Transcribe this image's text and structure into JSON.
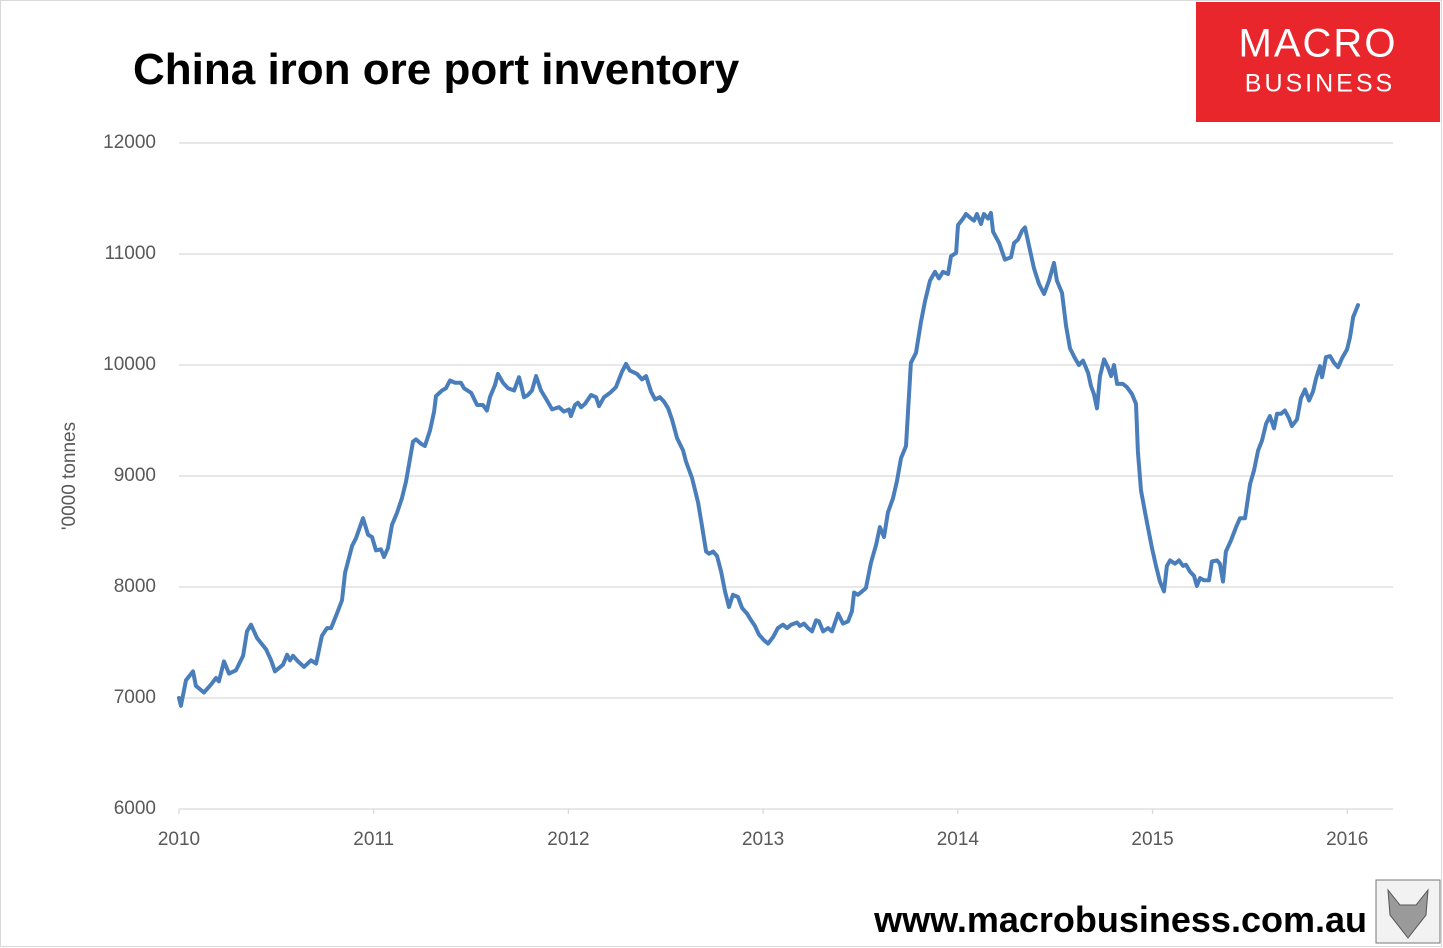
{
  "chart_data": {
    "type": "line",
    "title": "China iron ore port inventory",
    "y_label": "'0000 tonnes",
    "color": "#4a7ebb",
    "grid": true,
    "xlim": [
      2010,
      2016.235
    ],
    "xticks": [
      2010,
      2011,
      2012,
      2013,
      2014,
      2015,
      2016
    ],
    "ylim": [
      6000,
      12000
    ],
    "yticks": [
      6000,
      7000,
      8000,
      9000,
      10000,
      11000,
      12000
    ],
    "x": [
      2010.0,
      2010.01,
      2010.036,
      2010.072,
      2010.087,
      2010.128,
      2010.164,
      2010.19,
      2010.205,
      2010.231,
      2010.257,
      2010.293,
      2010.329,
      2010.349,
      2010.37,
      2010.401,
      2010.447,
      2010.473,
      2010.493,
      2010.534,
      2010.555,
      2010.57,
      2010.586,
      2010.611,
      2010.642,
      2010.678,
      2010.704,
      2010.734,
      2010.76,
      2010.781,
      2010.811,
      2010.837,
      2010.853,
      2010.889,
      2010.909,
      2010.945,
      2010.971,
      2010.991,
      2011.012,
      2011.037,
      2011.053,
      2011.073,
      2011.094,
      2011.12,
      2011.145,
      2011.166,
      2011.202,
      2011.217,
      2011.243,
      2011.263,
      2011.289,
      2011.31,
      2011.32,
      2011.351,
      2011.371,
      2011.392,
      2011.418,
      2011.448,
      2011.464,
      2011.5,
      2011.531,
      2011.561,
      2011.582,
      2011.597,
      2011.623,
      2011.638,
      2011.664,
      2011.69,
      2011.721,
      2011.746,
      2011.757,
      2011.772,
      2011.792,
      2011.813,
      2011.834,
      2011.859,
      2011.89,
      2011.916,
      2011.952,
      2011.977,
      2012.003,
      2012.013,
      2012.034,
      2012.049,
      2012.065,
      2012.085,
      2012.116,
      2012.142,
      2012.157,
      2012.183,
      2012.214,
      2012.244,
      2012.275,
      2012.296,
      2012.316,
      2012.352,
      2012.378,
      2012.399,
      2012.424,
      2012.445,
      2012.47,
      2012.491,
      2012.512,
      2012.532,
      2012.558,
      2012.589,
      2012.604,
      2012.635,
      2012.666,
      2012.686,
      2012.707,
      2012.722,
      2012.743,
      2012.763,
      2012.784,
      2012.804,
      2012.825,
      2012.845,
      2012.871,
      2012.892,
      2012.917,
      2012.938,
      2012.958,
      2012.979,
      2013.005,
      2013.025,
      2013.051,
      2013.076,
      2013.102,
      2013.123,
      2013.143,
      2013.174,
      2013.189,
      2013.21,
      2013.231,
      2013.251,
      2013.272,
      2013.287,
      2013.308,
      2013.333,
      2013.354,
      2013.385,
      2013.41,
      2013.436,
      2013.456,
      2013.467,
      2013.487,
      2013.508,
      2013.528,
      2013.554,
      2013.58,
      2013.6,
      2013.621,
      2013.641,
      2013.667,
      2013.688,
      2013.708,
      2013.734,
      2013.759,
      2013.785,
      2013.811,
      2013.831,
      2013.857,
      2013.883,
      2013.903,
      2013.924,
      2013.95,
      2013.965,
      2013.991,
      2014.001,
      2014.027,
      2014.042,
      2014.068,
      2014.083,
      2014.098,
      2014.119,
      2014.134,
      2014.155,
      2014.17,
      2014.181,
      2014.212,
      2014.242,
      2014.273,
      2014.289,
      2014.309,
      2014.33,
      2014.345,
      2014.366,
      2014.391,
      2014.417,
      2014.443,
      2014.468,
      2014.494,
      2014.509,
      2014.535,
      2014.556,
      2014.576,
      2014.602,
      2014.622,
      2014.643,
      2014.669,
      2014.684,
      2014.699,
      2014.715,
      2014.73,
      2014.751,
      2014.771,
      2014.787,
      2014.802,
      2014.818,
      2014.848,
      2014.869,
      2014.894,
      2014.915,
      2014.925,
      2014.941,
      2014.961,
      2014.977,
      2014.997,
      2015.018,
      2015.038,
      2015.059,
      2015.074,
      2015.09,
      2015.115,
      2015.136,
      2015.157,
      2015.172,
      2015.192,
      2015.213,
      2015.228,
      2015.244,
      2015.264,
      2015.29,
      2015.305,
      2015.331,
      2015.346,
      2015.362,
      2015.377,
      2015.403,
      2015.429,
      2015.449,
      2015.475,
      2015.501,
      2015.521,
      2015.542,
      2015.562,
      2015.583,
      2015.603,
      2015.624,
      2015.639,
      2015.66,
      2015.68,
      2015.701,
      2015.716,
      2015.742,
      2015.762,
      2015.783,
      2015.804,
      2015.824,
      2015.84,
      2015.86,
      2015.871,
      2015.891,
      2015.912,
      2015.932,
      2015.953,
      2015.973,
      2015.999,
      2016.014,
      2016.03,
      2016.055
    ],
    "values": [
      7000,
      6930,
      7160,
      7240,
      7110,
      7050,
      7120,
      7180,
      7150,
      7330,
      7220,
      7250,
      7380,
      7600,
      7660,
      7540,
      7440,
      7340,
      7240,
      7300,
      7390,
      7340,
      7380,
      7330,
      7280,
      7340,
      7310,
      7560,
      7630,
      7630,
      7760,
      7880,
      8130,
      8370,
      8440,
      8620,
      8470,
      8450,
      8330,
      8340,
      8270,
      8350,
      8560,
      8670,
      8800,
      8950,
      9310,
      9330,
      9290,
      9270,
      9410,
      9580,
      9720,
      9770,
      9790,
      9860,
      9840,
      9840,
      9790,
      9750,
      9640,
      9640,
      9590,
      9710,
      9820,
      9920,
      9840,
      9790,
      9770,
      9890,
      9820,
      9710,
      9730,
      9770,
      9900,
      9770,
      9680,
      9600,
      9620,
      9580,
      9600,
      9540,
      9640,
      9660,
      9620,
      9650,
      9730,
      9710,
      9630,
      9710,
      9750,
      9800,
      9940,
      10010,
      9950,
      9920,
      9870,
      9900,
      9760,
      9690,
      9710,
      9670,
      9610,
      9510,
      9340,
      9230,
      9130,
      8980,
      8760,
      8550,
      8320,
      8300,
      8320,
      8280,
      8140,
      7960,
      7820,
      7930,
      7910,
      7810,
      7760,
      7700,
      7650,
      7570,
      7520,
      7490,
      7550,
      7630,
      7660,
      7630,
      7660,
      7680,
      7650,
      7670,
      7630,
      7600,
      7700,
      7690,
      7600,
      7630,
      7600,
      7760,
      7670,
      7690,
      7780,
      7950,
      7930,
      7960,
      7990,
      8220,
      8380,
      8540,
      8450,
      8670,
      8800,
      8960,
      9160,
      9270,
      10020,
      10110,
      10390,
      10570,
      10760,
      10840,
      10780,
      10840,
      10820,
      10980,
      11010,
      11260,
      11320,
      11360,
      11320,
      11300,
      11360,
      11270,
      11360,
      11320,
      11370,
      11200,
      11100,
      10950,
      10970,
      11100,
      11130,
      11210,
      11240,
      11070,
      10870,
      10730,
      10640,
      10760,
      10920,
      10760,
      10650,
      10350,
      10150,
      10060,
      10000,
      10040,
      9930,
      9810,
      9740,
      9610,
      9900,
      10050,
      9980,
      9900,
      10000,
      9830,
      9830,
      9800,
      9740,
      9650,
      9220,
      8870,
      8680,
      8530,
      8350,
      8190,
      8050,
      7960,
      8190,
      8240,
      8210,
      8240,
      8190,
      8200,
      8140,
      8100,
      8010,
      8080,
      8060,
      8060,
      8230,
      8240,
      8210,
      8050,
      8320,
      8420,
      8540,
      8620,
      8620,
      8930,
      9050,
      9230,
      9320,
      9470,
      9540,
      9430,
      9560,
      9560,
      9590,
      9520,
      9450,
      9510,
      9700,
      9780,
      9680,
      9760,
      9880,
      9990,
      9890,
      10070,
      10080,
      10020,
      9980,
      10060,
      10140,
      10250,
      10430,
      10540
    ]
  },
  "logo": {
    "line1": "MACRO",
    "line2": "BUSINESS"
  },
  "footer": "www.macrobusiness.com.au"
}
